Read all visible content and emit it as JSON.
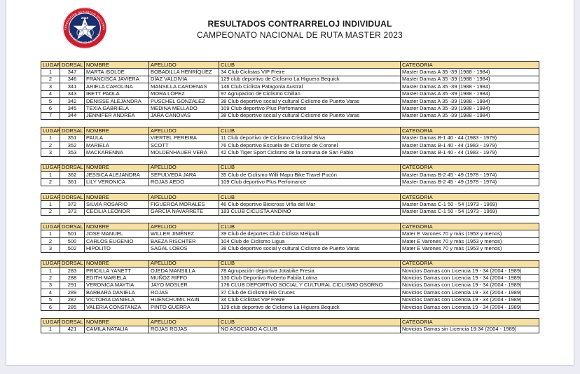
{
  "header": {
    "title_line1": "RESULTADOS CONTRARRELOJ INDIVIDUAL",
    "title_line2": "CAMPEONATO NACIONAL DE RUTA MASTER 2023",
    "logo": {
      "ring_text_top": "FEDERACION DEPORTIVA NACIONAL",
      "ring_text_bottom": "DE CICLISMO DE CHILE",
      "year_text": "2019",
      "ring_color": "#C8202F",
      "inner_color": "#1B2E6E",
      "star_color": "#FFFFFF"
    }
  },
  "colors": {
    "table_header_bg": "#F5DFA3",
    "table_border": "#2B2B2B",
    "paper": "#FFFFFF",
    "canvas": "#ECEDF4"
  },
  "table_columns": [
    "LUGAR",
    "DORSAL",
    "NOMBRE",
    "APELLIDO",
    "CLUB",
    "CATEGORIA"
  ],
  "tables": [
    {
      "rows": [
        [
          "1",
          "347",
          "MARTA ISOLDE",
          "BOBADILLA HENRÍQUEZ",
          "34 Club Ciclistas VIP Freire",
          "Master Damas A 35 -39 (1988 - 1984)"
        ],
        [
          "2",
          "346",
          "FRANCISCA JAVIERA",
          "DÍAZ VALDIVIA",
          "129 club deportivo de Ciclismo La Higuera Bequick",
          "Master Damas A 35 -39 (1988 - 1984)"
        ],
        [
          "3",
          "341",
          "ARIELA CAROLINA",
          "MANSILLA CARDENAS",
          "146 Club Ciclista Patagonia Austral",
          "Master Damas A  35 -39 (1988 - 1984)"
        ],
        [
          "4",
          "343",
          "IBETT PAOLA",
          "MORA LÓPEZ",
          "97 Agrupacion de Ciclismo Chillan",
          "Master Damas A 35 -39 (1988 - 1984)"
        ],
        [
          "5",
          "342",
          "DENISSE ALEJANDRA",
          "PUSCHEL GONZALEZ",
          "38 Club deportivo social y cultural Ciclismo de Puerto Varas",
          "Master Damas A  35 -39 (1988 - 1984)"
        ],
        [
          "6",
          "345",
          "TEXIA GABRIELA",
          "MEDINA MELLADO",
          "109 Club deportivo Plus Perfomance",
          "Master Damas A 35 -39 (1988 - 1984)"
        ],
        [
          "7",
          "344",
          "JENNIFER ANDREA",
          "JARA CANOVAS",
          "38 Club deportivo social y cultural Ciclismo de Puerto Varas",
          "Master Damas A 35 -39 (1988 - 1984)"
        ]
      ]
    },
    {
      "rows": [
        [
          "1",
          "351",
          "PAULA",
          "VIERTEL PEREIRA",
          "11 Club deportivo de Ciclismo Cristóbal Silva",
          "Master Damas B-1 40 - 44 (1983 - 1979)"
        ],
        [
          "2",
          "352",
          "MARIELA",
          "SCOTT",
          "76 Club deportivo Escuela de Ciclismo de Coronel",
          "Master Damas B-1  40 - 44 (1983 - 1979)"
        ],
        [
          "3",
          "353",
          "MACKARENNA",
          "MOLDENHAUER VERA",
          "42 Club Tiger Sport Ciclismo de la comuna de San Pablo",
          "Master Damas B-1  40 - 44 (1983 - 1979)"
        ]
      ]
    },
    {
      "rows": [
        [
          "1",
          "362",
          "JESSICA ALEJANDRA",
          "SEPULVEDA JARA",
          "35 Club de Ciclismo Willi Mapu Bike Travel Pucón",
          "Master Damas B-2 45 - 49 (1978 - 1974)"
        ],
        [
          "2",
          "361",
          "LILY VERONICA",
          "ROJAS AEDO",
          "109 Club deportivo Plus Perfomance",
          "Master Damas B-2 45 - 49 (1978 - 1974)"
        ]
      ]
    },
    {
      "rows": [
        [
          "1",
          "372",
          "SILVIA ROSARIO",
          "FIGUEROA MORALES",
          "46 Club deportivo Bicicross Viña del Mar",
          "Master Damas C-1 50 - 54 (1973 - 1969)"
        ],
        [
          "2",
          "373",
          "CECILIA LEONOR",
          "GARCÍA NAVARRETE",
          "183 CLUB CICLISTA ANDINO",
          "Master Damas C-1 50 - 54 (1973 - 1969)"
        ]
      ]
    },
    {
      "rows": [
        [
          "1",
          "501",
          "JOSE MANUEL",
          "WILLER JIMÉNEZ",
          "39 Club de deportes Club Ciclista Melipulli",
          "Mater E Varones 70 y más (1953 y menos)"
        ],
        [
          "2",
          "500",
          "CARLOS EUGENIO",
          "BAEZA RISCHTER",
          "104 Club de Ciclismo Ligua",
          "Mater E Varones 70 y más (1953 y menos)"
        ],
        [
          "3",
          "502",
          "HIPOLITO",
          "SAGAL LOBOS",
          "38 Club deportivo social y cultural Ciclismo de Puerto Varas",
          "Mater E Varones 70 y más (1953 y menos)"
        ]
      ]
    },
    {
      "rows": [
        [
          "1",
          "283",
          "PRICILLA YANETT",
          "OJEDA MANSILLA",
          "78 Agrupación deportiva Jotabike Fresia",
          "Novicios Damas  con Licencia  19 - 34 (2004 - 1989)"
        ],
        [
          "2",
          "288",
          "EDITH MARIELA",
          "MUÑOZ RIFFO",
          "130 Club Deportivo Roberto Fabila Lotina",
          "Novicios Damas con Licencia 19 - 34 (2004 - 1989)"
        ],
        [
          "3",
          "291",
          "VERONICA MAYTIA",
          "JAYO MOSLER",
          "176 CLUB DEPORTIVO SOCIAL Y CULTURAL CICLISMO OSORNO",
          "Novicios Damas con Licencia 19 - 34 (2004 - 1989)"
        ],
        [
          "4",
          "289",
          "BARBARA DANIELA",
          "ROJAS",
          "37 Club de Ciclismo Rio Cruces",
          "Novicios Damas con Licencia 19 - 34 (2004 - 1989)"
        ],
        [
          "5",
          "287",
          "VICTORIA DANIELA",
          "HUENCHUMIL RAIN",
          "34 Club Ciclistas VIP Freire",
          "Novicios Damas con Licencia 19 - 34 (2004 - 1989)"
        ],
        [
          "6",
          "285",
          "VALERIA CONSTANZA",
          "PINTO GUERRA",
          "129 club deportivo de Ciclismo La Higuera Bequick",
          "Novicios Damas con Licencia 19 - 34 (2004 - 1989)"
        ]
      ]
    },
    {
      "rows": [
        [
          "1",
          "421",
          "CAMILA NATALIA",
          "ROJAS ROJAS",
          "NO ASOCIADO A CLUB",
          "Novicios Damas sin Licencia 19:34 (2004 - 1989)"
        ]
      ]
    }
  ]
}
